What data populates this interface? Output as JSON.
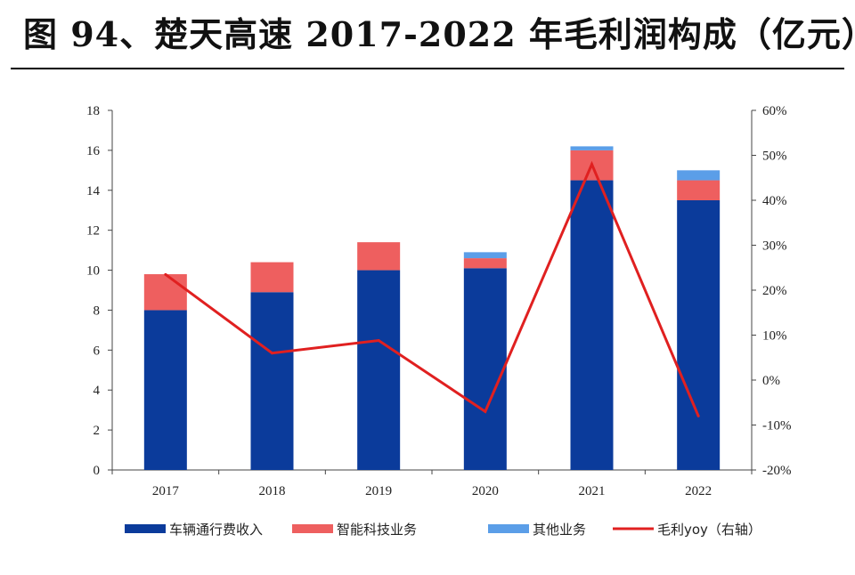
{
  "title": "图 94、楚天高速 2017-2022 年毛利润构成（亿元）",
  "chart_data": {
    "type": "bar",
    "stacked": true,
    "categories": [
      "2017",
      "2018",
      "2019",
      "2020",
      "2021",
      "2022"
    ],
    "series": [
      {
        "name": "车辆通行费收入",
        "values": [
          8.0,
          8.9,
          10.0,
          10.1,
          14.5,
          13.5
        ],
        "color": "#0b3b9b"
      },
      {
        "name": "智能科技业务",
        "values": [
          1.8,
          1.5,
          1.4,
          0.5,
          1.5,
          1.0
        ],
        "color": "#ee5f5f"
      },
      {
        "name": "其他业务",
        "values": [
          0.0,
          0.0,
          0.0,
          0.3,
          0.2,
          0.5
        ],
        "color": "#5b9ee8"
      }
    ],
    "line_series": {
      "name": "毛利yoy（右轴）",
      "values": [
        23.5,
        6.0,
        8.8,
        -7.0,
        48.0,
        -8.0
      ],
      "unit": "%",
      "axis": "right",
      "color": "#e02020"
    },
    "ylim": [
      0,
      18
    ],
    "yticks": [
      "0",
      "2",
      "4",
      "6",
      "8",
      "10",
      "12",
      "14",
      "16",
      "18"
    ],
    "y2lim": [
      -20,
      60
    ],
    "y2ticks": [
      "-20%",
      "-10%",
      "0%",
      "10%",
      "20%",
      "30%",
      "40%",
      "50%",
      "60%"
    ],
    "legend_position": "bottom",
    "grid": false
  }
}
